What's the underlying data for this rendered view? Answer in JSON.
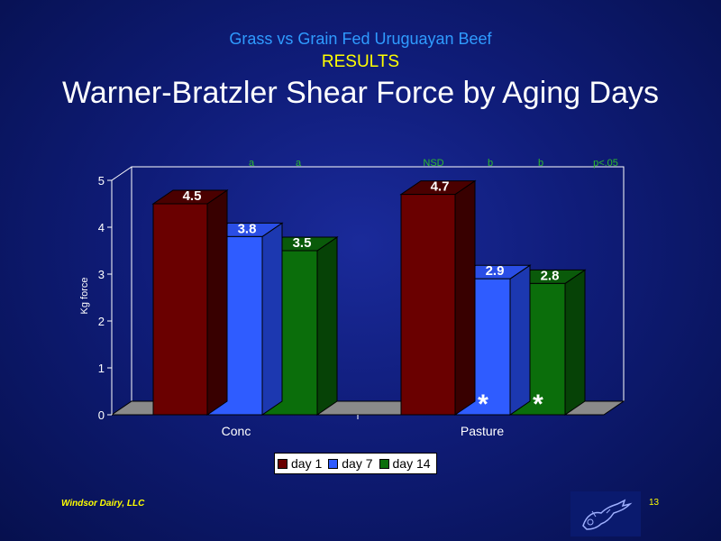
{
  "header": {
    "subtitle": "Grass vs Grain Fed Uruguayan Beef",
    "section": "RESULTS",
    "title": "Warner-Bratzler Shear Force by Aging Days"
  },
  "footer": {
    "company": "Windsor Dairy, LLC",
    "page_number": "13"
  },
  "legend_items": [
    "day 1",
    "day 7",
    "day 14"
  ],
  "colors": {
    "day1": "#6a0000",
    "day7": "#2f5cff",
    "day14": "#0b6e0b"
  },
  "significance": [
    "a",
    "a",
    "NSD",
    "b",
    "b",
    "p<.05"
  ],
  "asterisk": "*",
  "chart_data": {
    "type": "bar",
    "categories": [
      "Conc",
      "Pasture"
    ],
    "series": [
      {
        "name": "day 1",
        "values": [
          4.5,
          4.7
        ]
      },
      {
        "name": "day 7",
        "values": [
          3.8,
          2.9
        ]
      },
      {
        "name": "day 14",
        "values": [
          3.5,
          2.8
        ]
      }
    ],
    "data_labels": [
      [
        "4.5",
        "4.7"
      ],
      [
        "3.8",
        "2.9"
      ],
      [
        "3.5",
        "2.8"
      ]
    ],
    "asterisk_marks": [
      {
        "category": "Pasture",
        "series": "day 7"
      },
      {
        "category": "Pasture",
        "series": "day 14"
      }
    ],
    "ylabel": "Kg force",
    "xlabel": "",
    "ylim": [
      0,
      5
    ],
    "yticks": [
      "0",
      "1",
      "2",
      "3",
      "4",
      "5"
    ],
    "grid": false,
    "legend_position": "bottom",
    "style": "3d-column"
  }
}
